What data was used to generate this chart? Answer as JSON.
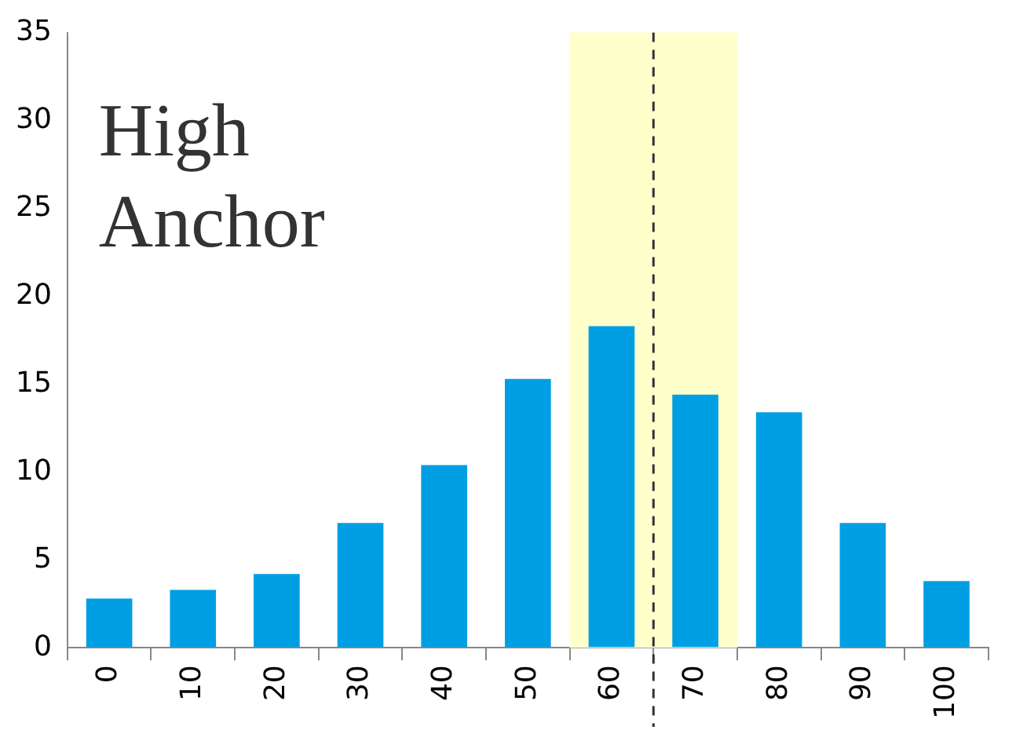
{
  "chart_data": {
    "type": "bar",
    "x": [
      0,
      10,
      20,
      30,
      40,
      50,
      60,
      70,
      80,
      90,
      100
    ],
    "values": [
      2.8,
      3.3,
      4.2,
      7.1,
      10.4,
      15.3,
      18.3,
      14.4,
      13.4,
      7.1,
      3.8
    ],
    "color": "#009fe3",
    "xlim": [
      -5,
      105
    ],
    "xticks": [
      {
        "value": -5,
        "label": null
      },
      0,
      {
        "value": 5,
        "label": null
      },
      10,
      {
        "value": 15,
        "label": null
      },
      20,
      {
        "value": 25,
        "label": null
      },
      30,
      {
        "value": 35,
        "label": null
      },
      40,
      {
        "value": 45,
        "label": null
      },
      50,
      {
        "value": 55,
        "label": null
      },
      60,
      {
        "value": 65,
        "label": null
      },
      70,
      {
        "value": 75,
        "label": null
      },
      80,
      {
        "value": 85,
        "label": null
      },
      90,
      {
        "value": 95,
        "label": null
      },
      100,
      {
        "value": 105,
        "label": null
      }
    ],
    "ylim": [
      0,
      35
    ],
    "yticks": [
      0,
      5,
      10,
      15,
      20,
      25,
      30,
      35
    ],
    "grid": false,
    "bands": [
      {
        "axis": "x",
        "from": 55,
        "to": 75,
        "color": "#ffffcc"
      }
    ],
    "ref_lines": [
      {
        "axis": "x",
        "value": 65,
        "color": "#333333",
        "line_style": "dashed"
      }
    ],
    "annotations": [
      "High Anchor"
    ]
  }
}
